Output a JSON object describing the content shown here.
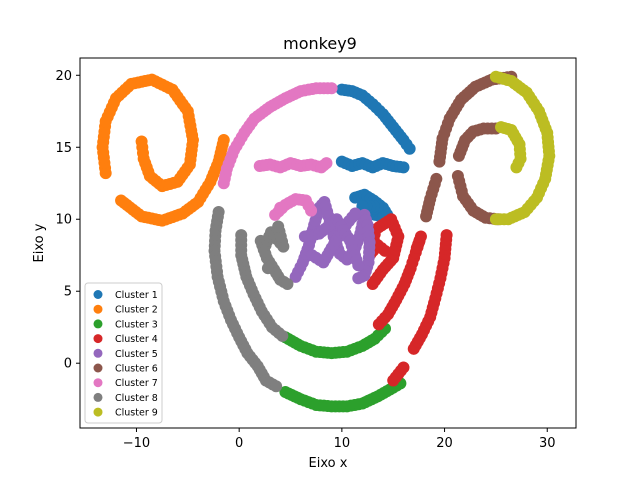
{
  "chart_data": {
    "type": "scatter",
    "title": "monkey9",
    "xlabel": "Eixo x",
    "ylabel": "Eixo y",
    "xlim": [
      -15.5,
      32.8
    ],
    "ylim": [
      -4.5,
      21.2
    ],
    "xticks": [
      -10,
      0,
      10,
      20,
      30
    ],
    "yticks": [
      0,
      5,
      10,
      15,
      20
    ],
    "xtick_labels": [
      "−10",
      "0",
      "10",
      "20",
      "30"
    ],
    "ytick_labels": [
      "0",
      "5",
      "10",
      "15",
      "20"
    ],
    "legend_position": "lower-left",
    "grid": false,
    "series": [
      {
        "name": "Cluster 1",
        "color": "#1f77b4",
        "points": [
          [
            10,
            19
          ],
          [
            11,
            18.9
          ],
          [
            12,
            18.6
          ],
          [
            13,
            18
          ],
          [
            14,
            17.3
          ],
          [
            15,
            16.4
          ],
          [
            16,
            15.5
          ],
          [
            16.6,
            14.9
          ],
          [
            10,
            14
          ],
          [
            11,
            13.7
          ],
          [
            12,
            13.9
          ],
          [
            13,
            13.6
          ],
          [
            14,
            13.9
          ],
          [
            15,
            13.7
          ],
          [
            16,
            13.6
          ],
          [
            11.3,
            11.5
          ],
          [
            12.2,
            11.7
          ],
          [
            13.1,
            11.3
          ],
          [
            14,
            10.8
          ],
          [
            14.6,
            10.1
          ],
          [
            12.6,
            10.4
          ],
          [
            13.5,
            10.9
          ],
          [
            12,
            10.9
          ]
        ]
      },
      {
        "name": "Cluster 2",
        "color": "#ff7f0e",
        "points": [
          [
            -1.5,
            15.5
          ],
          [
            -2,
            14
          ],
          [
            -2.8,
            12.6
          ],
          [
            -4,
            11.2
          ],
          [
            -5.5,
            10.4
          ],
          [
            -7.5,
            9.9
          ],
          [
            -9.5,
            10.2
          ],
          [
            -11.5,
            11.3
          ],
          [
            -13,
            13.2
          ],
          [
            -13.3,
            15
          ],
          [
            -13,
            16.8
          ],
          [
            -12,
            18.4
          ],
          [
            -10.5,
            19.4
          ],
          [
            -8.5,
            19.7
          ],
          [
            -6.5,
            19
          ],
          [
            -5,
            17.5
          ],
          [
            -4.5,
            15.5
          ],
          [
            -4.8,
            13.8
          ],
          [
            -6,
            12.6
          ],
          [
            -7.5,
            12.3
          ],
          [
            -8.7,
            13
          ],
          [
            -9.3,
            14.2
          ],
          [
            -9.5,
            15.4
          ]
        ]
      },
      {
        "name": "Cluster 3",
        "color": "#2ca02c",
        "points": [
          [
            4.5,
            1.8
          ],
          [
            6,
            1.2
          ],
          [
            7.5,
            0.8
          ],
          [
            9,
            0.7
          ],
          [
            10.5,
            0.8
          ],
          [
            12,
            1.2
          ],
          [
            13.2,
            1.7
          ],
          [
            14.2,
            2.4
          ],
          [
            4.5,
            -2
          ],
          [
            6,
            -2.5
          ],
          [
            7.5,
            -2.9
          ],
          [
            9,
            -3
          ],
          [
            10.5,
            -3
          ],
          [
            12,
            -2.8
          ],
          [
            13.5,
            -2.3
          ],
          [
            15,
            -1.7
          ],
          [
            15.7,
            -1.4
          ]
        ]
      },
      {
        "name": "Cluster 4",
        "color": "#d62728",
        "points": [
          [
            13.6,
            2.7
          ],
          [
            14.5,
            3.4
          ],
          [
            15.3,
            4.4
          ],
          [
            16.1,
            5.5
          ],
          [
            16.7,
            6.6
          ],
          [
            17.2,
            7.7
          ],
          [
            17.7,
            8.8
          ],
          [
            17.3,
            8
          ],
          [
            17,
            1
          ],
          [
            17.8,
            2
          ],
          [
            18.6,
            3.2
          ],
          [
            19.1,
            4.5
          ],
          [
            19.6,
            5.9
          ],
          [
            20,
            7.3
          ],
          [
            20.2,
            8.9
          ],
          [
            16,
            -0.3
          ],
          [
            15,
            -1.2
          ],
          [
            13,
            5.5
          ],
          [
            14,
            6.5
          ],
          [
            15,
            7.3
          ],
          [
            15.5,
            8.8
          ],
          [
            14.8,
            10
          ],
          [
            13.3,
            9.3
          ],
          [
            12.8,
            7.6
          ],
          [
            13.5,
            8.2
          ],
          [
            14.2,
            7.8
          ]
        ]
      },
      {
        "name": "Cluster 5",
        "color": "#9467bd",
        "points": [
          [
            5.5,
            6
          ],
          [
            6.2,
            7
          ],
          [
            6.8,
            8.2
          ],
          [
            7.3,
            9.6
          ],
          [
            7.8,
            10.8
          ],
          [
            8.3,
            11.2
          ],
          [
            8.7,
            10.2
          ],
          [
            9.2,
            8.8
          ],
          [
            9.8,
            7.6
          ],
          [
            10.5,
            7.2
          ],
          [
            11.2,
            7.8
          ],
          [
            11.8,
            9
          ],
          [
            12.2,
            10.3
          ],
          [
            12.5,
            9.6
          ],
          [
            12.7,
            8.4
          ],
          [
            12.6,
            7
          ],
          [
            12.2,
            6.1
          ],
          [
            11.6,
            5.9
          ],
          [
            7.1,
            7.5
          ],
          [
            8.2,
            7
          ],
          [
            9,
            8
          ],
          [
            10.4,
            9.6
          ],
          [
            11.3,
            10.4
          ],
          [
            6.4,
            8.8
          ],
          [
            7.8,
            9
          ],
          [
            9.5,
            10
          ],
          [
            10.8,
            8.5
          ],
          [
            11.6,
            6.8
          ]
        ]
      },
      {
        "name": "Cluster 6",
        "color": "#8c564b",
        "points": [
          [
            19.5,
            14
          ],
          [
            19.8,
            15.6
          ],
          [
            20.5,
            17
          ],
          [
            21.6,
            18.3
          ],
          [
            23,
            19.2
          ],
          [
            24.6,
            19.7
          ],
          [
            26.5,
            19.9
          ],
          [
            19.2,
            12.8
          ],
          [
            18.6,
            11.4
          ],
          [
            18.2,
            10.2
          ],
          [
            21.3,
            13
          ],
          [
            21.8,
            11.6
          ],
          [
            22.8,
            10.6
          ],
          [
            24,
            10.1
          ],
          [
            25.2,
            10
          ],
          [
            21.4,
            14.4
          ],
          [
            22,
            15.5
          ],
          [
            22.8,
            16.1
          ],
          [
            23.8,
            16.3
          ],
          [
            25,
            16.3
          ]
        ]
      },
      {
        "name": "Cluster 7",
        "color": "#e377c2",
        "points": [
          [
            -1.5,
            12.5
          ],
          [
            -1.2,
            13.5
          ],
          [
            -0.5,
            14.8
          ],
          [
            0.5,
            16
          ],
          [
            1.5,
            17
          ],
          [
            3,
            17.8
          ],
          [
            4.5,
            18.4
          ],
          [
            6,
            18.9
          ],
          [
            7.5,
            19.1
          ],
          [
            9,
            19.1
          ],
          [
            2,
            13.7
          ],
          [
            3,
            13.8
          ],
          [
            4,
            13.6
          ],
          [
            5,
            13.9
          ],
          [
            6,
            13.7
          ],
          [
            7,
            13.8
          ],
          [
            8,
            13.6
          ],
          [
            8.5,
            13.9
          ],
          [
            3.5,
            10.3
          ],
          [
            4.5,
            11
          ],
          [
            5.5,
            11.4
          ],
          [
            6.5,
            11.3
          ],
          [
            7,
            10.6
          ],
          [
            4,
            10.8
          ]
        ]
      },
      {
        "name": "Cluster 8",
        "color": "#7f7f7f",
        "points": [
          [
            -2,
            10.5
          ],
          [
            -2.3,
            9.2
          ],
          [
            -2.4,
            7.8
          ],
          [
            -2.1,
            6
          ],
          [
            -1.5,
            4.3
          ],
          [
            -0.8,
            3
          ],
          [
            0,
            1.8
          ],
          [
            0.8,
            0.7
          ],
          [
            1.8,
            -0.2
          ],
          [
            2.6,
            -1.2
          ],
          [
            3.6,
            -1.6
          ],
          [
            0.2,
            8.9
          ],
          [
            0.2,
            7.5
          ],
          [
            0.7,
            6
          ],
          [
            1.4,
            4.8
          ],
          [
            2.2,
            3.6
          ],
          [
            3.2,
            2.5
          ],
          [
            4.2,
            1.9
          ],
          [
            2.1,
            8.5
          ],
          [
            2.7,
            7.3
          ],
          [
            3.4,
            6.5
          ],
          [
            4,
            5.8
          ],
          [
            4.7,
            5.5
          ],
          [
            2.4,
            7.9
          ],
          [
            3.1,
            9.1
          ],
          [
            4.3,
            8.1
          ],
          [
            3.8,
            9.5
          ],
          [
            2.8,
            6.6
          ]
        ]
      },
      {
        "name": "Cluster 9",
        "color": "#bcbd22",
        "points": [
          [
            25,
            19.9
          ],
          [
            26.5,
            19.6
          ],
          [
            28,
            18.8
          ],
          [
            29.2,
            17.5
          ],
          [
            30,
            16
          ],
          [
            30.2,
            14.4
          ],
          [
            29.8,
            12.8
          ],
          [
            29,
            11.5
          ],
          [
            27.8,
            10.5
          ],
          [
            26.2,
            10
          ],
          [
            25,
            10
          ],
          [
            25.5,
            16.4
          ],
          [
            26.5,
            16.2
          ],
          [
            27.3,
            15.2
          ],
          [
            27.4,
            14.2
          ],
          [
            27,
            13.6
          ]
        ]
      }
    ]
  }
}
